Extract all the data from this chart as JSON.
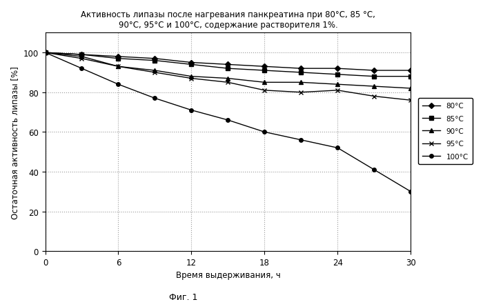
{
  "title": "Активность липазы после нагревания панкреатина при 80°C, 85 °C,\n90°C, 95°C и 100°C, содержание растворителя 1%.",
  "xlabel": "Время выдерживания, ч",
  "ylabel": "Остаточная активность липазы [%]",
  "caption": "Фиг. 1",
  "xlim": [
    0,
    30
  ],
  "ylim": [
    0,
    110
  ],
  "xticks": [
    0,
    6,
    12,
    18,
    24,
    30
  ],
  "yticks": [
    0,
    20,
    40,
    60,
    80,
    100
  ],
  "series": [
    {
      "label": "80°C",
      "x": [
        0,
        3,
        6,
        9,
        12,
        15,
        18,
        21,
        24,
        27,
        30
      ],
      "y": [
        100,
        99,
        98,
        97,
        95,
        94,
        93,
        92,
        92,
        91,
        91
      ],
      "marker": "D",
      "markersize": 4,
      "color": "#000000",
      "linestyle": "-"
    },
    {
      "label": "85°C",
      "x": [
        0,
        3,
        6,
        9,
        12,
        15,
        18,
        21,
        24,
        27,
        30
      ],
      "y": [
        100,
        99,
        97,
        96,
        94,
        92,
        91,
        90,
        89,
        88,
        88
      ],
      "marker": "s",
      "markersize": 4,
      "color": "#000000",
      "linestyle": "-"
    },
    {
      "label": "90°C",
      "x": [
        0,
        3,
        6,
        9,
        12,
        15,
        18,
        21,
        24,
        27,
        30
      ],
      "y": [
        100,
        98,
        93,
        91,
        88,
        87,
        85,
        85,
        84,
        83,
        82
      ],
      "marker": "^",
      "markersize": 4,
      "color": "#000000",
      "linestyle": "-"
    },
    {
      "label": "95°C",
      "x": [
        0,
        3,
        6,
        9,
        12,
        15,
        18,
        21,
        24,
        27,
        30
      ],
      "y": [
        100,
        97,
        93,
        90,
        87,
        85,
        81,
        80,
        81,
        78,
        76
      ],
      "marker": "x",
      "markersize": 5,
      "color": "#000000",
      "linestyle": "-"
    },
    {
      "label": "100°C",
      "x": [
        0,
        3,
        6,
        9,
        12,
        15,
        18,
        21,
        24,
        27,
        30
      ],
      "y": [
        100,
        92,
        84,
        77,
        71,
        66,
        60,
        56,
        52,
        41,
        30
      ],
      "marker": "o",
      "markersize": 4,
      "color": "#000000",
      "linestyle": "-"
    }
  ],
  "background_color": "#ffffff",
  "grid_color": "#999999",
  "title_fontsize": 8.5,
  "axis_label_fontsize": 8.5,
  "legend_fontsize": 7.5,
  "tick_fontsize": 8.5,
  "caption_fontsize": 9
}
